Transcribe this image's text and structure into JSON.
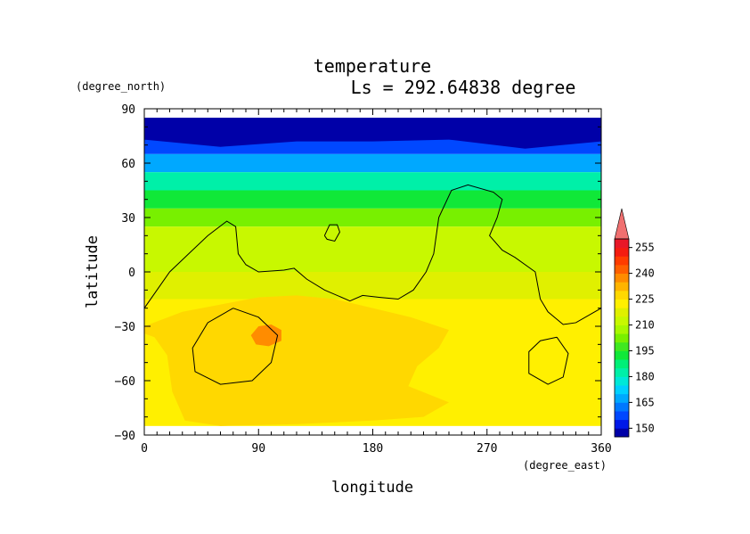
{
  "chart_data": {
    "type": "heatmap",
    "title": "temperature",
    "subtitle": "Ls = 292.64838 degree",
    "xlabel": "longitude",
    "ylabel": "latitude",
    "x_unit": "(degree_east)",
    "y_unit": "(degree_north)",
    "xlim": [
      0,
      360
    ],
    "ylim": [
      -90,
      90
    ],
    "x_ticks": [
      0,
      90,
      180,
      270,
      360
    ],
    "y_ticks": [
      90,
      60,
      30,
      0,
      -30,
      -60,
      -90
    ],
    "x_tick_labels": [
      "0",
      "90",
      "180",
      "270",
      "360"
    ],
    "y_tick_labels": [
      "90",
      "60",
      "30",
      "0",
      "−30",
      "−60",
      "−90"
    ],
    "colorbar": {
      "levels": [
        145,
        150,
        155,
        160,
        165,
        170,
        175,
        180,
        185,
        190,
        195,
        200,
        205,
        210,
        215,
        220,
        225,
        230,
        235,
        240,
        245,
        250,
        255,
        260
      ],
      "tick_labels": [
        "150",
        "165",
        "180",
        "195",
        "210",
        "225",
        "240",
        "255"
      ],
      "colors": [
        "#0000a8",
        "#0018e8",
        "#0048ff",
        "#0078ff",
        "#00a8ff",
        "#00d0ff",
        "#00e8d8",
        "#00f0a8",
        "#00f078",
        "#10e838",
        "#40e820",
        "#78f000",
        "#a8f800",
        "#c8f800",
        "#e0f000",
        "#fff000",
        "#ffd800",
        "#ffb400",
        "#ff8c00",
        "#ff6000",
        "#ff3c00",
        "#f41c10",
        "#e81828"
      ],
      "extend_max_color": "#f07070"
    },
    "latitude_bands": [
      {
        "lat_range": [
          75,
          85
        ],
        "temperature": 148
      },
      {
        "lat_range": [
          65,
          75
        ],
        "temperature": 155
      },
      {
        "lat_range": [
          55,
          65
        ],
        "temperature": 168
      },
      {
        "lat_range": [
          45,
          55
        ],
        "temperature": 180
      },
      {
        "lat_range": [
          35,
          45
        ],
        "temperature": 193
      },
      {
        "lat_range": [
          25,
          35
        ],
        "temperature": 203
      },
      {
        "lat_range": [
          15,
          25
        ],
        "temperature": 210
      },
      {
        "lat_range": [
          0,
          15
        ],
        "temperature": 214
      },
      {
        "lat_range": [
          -15,
          0
        ],
        "temperature": 218
      },
      {
        "lat_range": [
          -45,
          -15
        ],
        "temperature": 222
      },
      {
        "lat_range": [
          -85,
          -45
        ],
        "temperature": 222
      }
    ],
    "regions": [
      {
        "name": "warm-southern-region",
        "temperature": 227,
        "polygon_lonlat": [
          [
            0,
            -30
          ],
          [
            30,
            -22
          ],
          [
            60,
            -18
          ],
          [
            90,
            -14
          ],
          [
            120,
            -13
          ],
          [
            150,
            -15
          ],
          [
            180,
            -20
          ],
          [
            210,
            -25
          ],
          [
            240,
            -32
          ],
          [
            232,
            -42
          ],
          [
            215,
            -52
          ],
          [
            208,
            -63
          ],
          [
            240,
            -72
          ],
          [
            220,
            -80
          ],
          [
            180,
            -82
          ],
          [
            120,
            -84
          ],
          [
            60,
            -85
          ],
          [
            32,
            -82
          ],
          [
            22,
            -66
          ],
          [
            18,
            -46
          ],
          [
            8,
            -36
          ],
          [
            0,
            -34
          ]
        ]
      },
      {
        "name": "hot-spot",
        "temperature": 236,
        "polygon_lonlat": [
          [
            84,
            -35
          ],
          [
            90,
            -30
          ],
          [
            100,
            -29
          ],
          [
            108,
            -32
          ],
          [
            108,
            -38
          ],
          [
            98,
            -41
          ],
          [
            88,
            -40
          ]
        ]
      },
      {
        "name": "cold-cap",
        "temperature": 147,
        "polygon_lonlat": [
          [
            0,
            85
          ],
          [
            360,
            85
          ],
          [
            360,
            72
          ],
          [
            300,
            68
          ],
          [
            240,
            73
          ],
          [
            180,
            72
          ],
          [
            120,
            72
          ],
          [
            60,
            69
          ],
          [
            0,
            73
          ]
        ]
      }
    ],
    "contours": [
      {
        "name": "contour-topography-north",
        "points_lonlat": [
          [
            0,
            -20
          ],
          [
            10,
            -10
          ],
          [
            20,
            0
          ],
          [
            35,
            10
          ],
          [
            50,
            20
          ],
          [
            65,
            28
          ],
          [
            72,
            25
          ],
          [
            74,
            10
          ],
          [
            80,
            4
          ],
          [
            90,
            0
          ],
          [
            110,
            1
          ],
          [
            118,
            2
          ],
          [
            128,
            -4
          ],
          [
            142,
            -10
          ],
          [
            162,
            -16
          ],
          [
            172,
            -13
          ],
          [
            185,
            -14
          ],
          [
            200,
            -15
          ],
          [
            212,
            -10
          ],
          [
            222,
            0
          ],
          [
            228,
            10
          ],
          [
            232,
            30
          ],
          [
            242,
            45
          ],
          [
            255,
            48
          ],
          [
            275,
            44
          ],
          [
            282,
            40
          ],
          [
            278,
            30
          ],
          [
            272,
            20
          ],
          [
            282,
            12
          ],
          [
            292,
            8
          ],
          [
            308,
            0
          ],
          [
            312,
            -15
          ],
          [
            318,
            -22
          ],
          [
            330,
            -29
          ],
          [
            340,
            -28
          ],
          [
            355,
            -22
          ],
          [
            360,
            -20
          ]
        ]
      },
      {
        "name": "contour-topography-islet",
        "points_lonlat": [
          [
            142,
            20
          ],
          [
            146,
            26
          ],
          [
            152,
            26
          ],
          [
            154,
            22
          ],
          [
            150,
            17
          ],
          [
            144,
            18
          ],
          [
            142,
            20
          ]
        ]
      },
      {
        "name": "contour-topography-southwest",
        "points_lonlat": [
          [
            70,
            -20
          ],
          [
            90,
            -25
          ],
          [
            105,
            -35
          ],
          [
            100,
            -50
          ],
          [
            85,
            -60
          ],
          [
            60,
            -62
          ],
          [
            40,
            -55
          ],
          [
            38,
            -42
          ],
          [
            50,
            -28
          ],
          [
            70,
            -20
          ]
        ]
      },
      {
        "name": "contour-topography-southeast",
        "points_lonlat": [
          [
            325,
            -36
          ],
          [
            334,
            -45
          ],
          [
            330,
            -58
          ],
          [
            318,
            -62
          ],
          [
            303,
            -56
          ],
          [
            303,
            -44
          ],
          [
            312,
            -38
          ],
          [
            325,
            -36
          ]
        ]
      }
    ]
  }
}
